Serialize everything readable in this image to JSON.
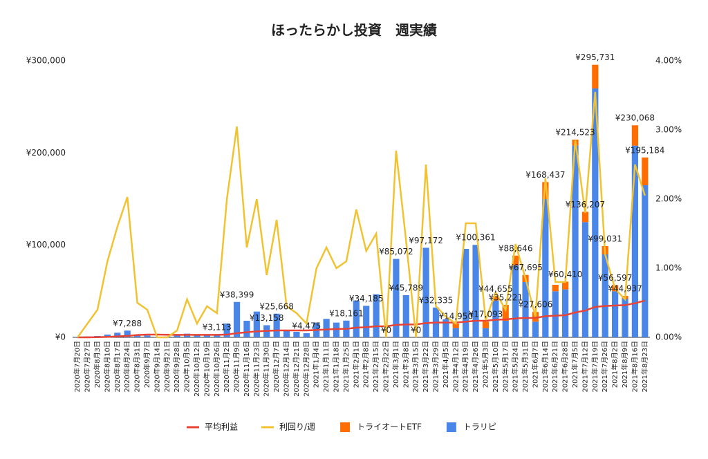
{
  "chart_data": {
    "type": "bar",
    "title": "ほったらかし投資　週実績",
    "categories": [
      "2020年7月20日",
      "2020年7月27日",
      "2020年8月3日",
      "2020年8月10日",
      "2020年8月17日",
      "2020年8月24日",
      "2020年8月31日",
      "2020年9月7日",
      "2020年9月14日",
      "2020年9月21日",
      "2020年9月28日",
      "2020年10月5日",
      "2020年10月12日",
      "2020年10月19日",
      "2020年10月26日",
      "2020年11月2日",
      "2020年11月9日",
      "2020年11月16日",
      "2020年11月23日",
      "2020年11月30日",
      "2020年12月7日",
      "2020年12月14日",
      "2020年12月21日",
      "2020年12月28日",
      "2021年1月4日",
      "2021年1月11日",
      "2021年1月18日",
      "2021年1月25日",
      "2021年2月1日",
      "2021年2月8日",
      "2021年2月15日",
      "2021年2月22日",
      "2021年3月1日",
      "2021年3月8日",
      "2021年3月15日",
      "2021年3月22日",
      "2021年3月29日",
      "2021年4月5日",
      "2021年4月12日",
      "2021年4月19日",
      "2021年4月26日",
      "2021年5月3日",
      "2021年5月10日",
      "2021年5月17日",
      "2021年5月24日",
      "2021年5月31日",
      "2021年6月7日",
      "2021年6月14日",
      "2021年6月21日",
      "2021年6月28日",
      "2021年7月5日",
      "2021年7月12日",
      "2021年7月19日",
      "2021年7月26日",
      "2021年8月2日",
      "2021年8月9日",
      "2021年8月16日",
      "2021年8月23日"
    ],
    "series": [
      {
        "name": "平均利益",
        "type": "line",
        "color": "#e84335",
        "values": [
          0,
          0,
          200,
          500,
          1000,
          1500,
          2500,
          3000,
          3000,
          2800,
          2700,
          2700,
          2700,
          2700,
          2700,
          3000,
          4500,
          5500,
          6500,
          7000,
          7500,
          7500,
          7500,
          7500,
          8000,
          8500,
          9000,
          9300,
          10500,
          11000,
          12000,
          12000,
          13500,
          14000,
          14000,
          15500,
          16000,
          16000,
          16000,
          17000,
          18000,
          18000,
          19000,
          19500,
          20500,
          21000,
          21000,
          23000,
          23500,
          24000,
          27000,
          29000,
          33000,
          34000,
          34500,
          35000,
          37000,
          40000
        ]
      },
      {
        "name": "利回り/週",
        "type": "line",
        "axis": "y2",
        "color": "#f1c232",
        "values": [
          0,
          0.2,
          0.4,
          1.1,
          1.6,
          2.03,
          0.5,
          0.4,
          0,
          0,
          0.1,
          0.55,
          0.2,
          0.45,
          0.35,
          2.0,
          3.05,
          1.3,
          2.0,
          0.9,
          1.7,
          0.45,
          0.35,
          0.2,
          1.0,
          1.3,
          1.0,
          1.1,
          1.85,
          1.25,
          1.5,
          0,
          2.7,
          1.4,
          0,
          2.5,
          0.45,
          0.3,
          0.2,
          1.65,
          1.65,
          0.25,
          0.65,
          0.4,
          1.35,
          0.85,
          0.3,
          2.3,
          0.8,
          0.8,
          2.85,
          1.8,
          3.55,
          1.2,
          0.7,
          0.55,
          2.5,
          2.05
        ]
      },
      {
        "name": "トライオートETF",
        "type": "bar",
        "color": "#ff6d01",
        "values": [
          0,
          0,
          0,
          0,
          0,
          0,
          0,
          0,
          0,
          0,
          0,
          0,
          0,
          0,
          0,
          0,
          0,
          0,
          0,
          0,
          0,
          0,
          0,
          0,
          0,
          0,
          0,
          0,
          0,
          0,
          0,
          0,
          0,
          0,
          0,
          0,
          0,
          0,
          4950,
          0,
          0,
          7093,
          4655,
          17221,
          10646,
          7695,
          10606,
          18437,
          7000,
          8410,
          6523,
          11207,
          25731,
          9031,
          6597,
          2937,
          22068,
          30184
        ]
      },
      {
        "name": "トラリピ",
        "type": "bar",
        "color": "#4a86e8",
        "values": [
          500,
          1000,
          1500,
          3000,
          5000,
          7288,
          3000,
          2000,
          500,
          1000,
          2000,
          4000,
          2000,
          2500,
          3113,
          15000,
          38399,
          18000,
          28000,
          13158,
          25668,
          8000,
          6000,
          4475,
          16000,
          20000,
          16000,
          18161,
          40000,
          34185,
          46700,
          0,
          85072,
          45789,
          0,
          97172,
          32335,
          19500,
          10000,
          96000,
          100361,
          10000,
          40000,
          18000,
          78000,
          60000,
          17000,
          150000,
          50000,
          52000,
          208000,
          125000,
          270000,
          90000,
          50000,
          42000,
          208000,
          165000
        ]
      }
    ],
    "totals": {
      "values": [
        null,
        null,
        null,
        null,
        null,
        7288,
        null,
        null,
        null,
        null,
        null,
        null,
        null,
        null,
        3113,
        null,
        38399,
        null,
        null,
        13158,
        25668,
        null,
        null,
        4475,
        null,
        null,
        null,
        18161,
        null,
        34185,
        null,
        0,
        85072,
        45789,
        0,
        97172,
        32335,
        null,
        14950,
        null,
        100361,
        17093,
        44655,
        35221,
        88646,
        67695,
        27606,
        168437,
        null,
        60410,
        214523,
        136207,
        295731,
        99031,
        56597,
        44937,
        230068,
        195184
      ],
      "value_labels": [
        null,
        null,
        null,
        null,
        null,
        "¥7,288",
        null,
        null,
        null,
        null,
        null,
        null,
        null,
        null,
        "¥3,113",
        null,
        "¥38,399",
        null,
        null,
        "¥13,158",
        "¥25,668",
        null,
        null,
        "¥4,475",
        null,
        null,
        null,
        "¥18,161",
        null,
        "¥34,185",
        null,
        "¥0",
        "¥85,072",
        "¥45,789",
        "¥0",
        "¥97,172",
        "¥32,335",
        null,
        "¥14,950",
        null,
        "¥100,361",
        "¥17,093",
        "¥44,655",
        "¥35,221",
        "¥88,646",
        "¥67,695",
        "¥27,606",
        "¥168,437",
        null,
        "¥60,410",
        "¥214,523",
        "¥136,207",
        "¥295,731",
        "¥99,031",
        "¥56,597",
        "¥44,937",
        "¥230,068",
        "¥195,184"
      ]
    },
    "ylim": [
      0,
      300000
    ],
    "yticks": [
      {
        "value": 0,
        "label": "¥0"
      },
      {
        "value": 100000,
        "label": "¥100,000"
      },
      {
        "value": 200000,
        "label": "¥200,000"
      },
      {
        "value": 300000,
        "label": "¥300,000"
      }
    ],
    "y2lim": [
      0,
      4
    ],
    "y2ticks": [
      {
        "value": 0,
        "label": "0.00%"
      },
      {
        "value": 1,
        "label": "1.00%"
      },
      {
        "value": 2,
        "label": "2.00%"
      },
      {
        "value": 3,
        "label": "3.00%"
      },
      {
        "value": 4,
        "label": "4.00%"
      }
    ],
    "grid": false,
    "legend": "bottom"
  }
}
